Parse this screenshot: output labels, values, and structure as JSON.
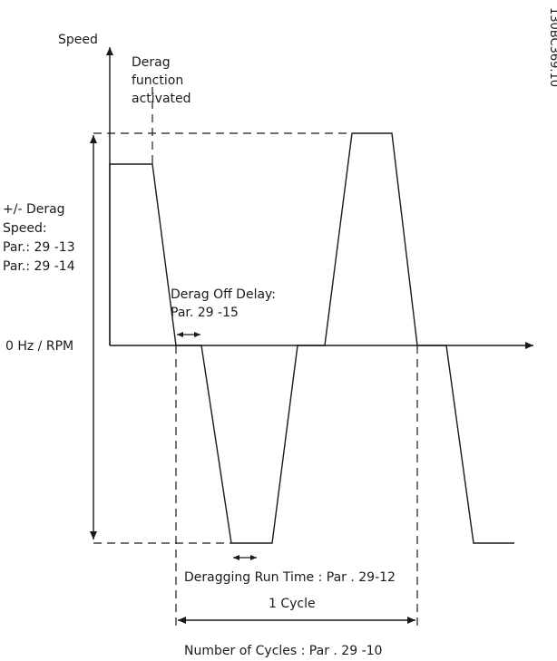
{
  "labels": {
    "speed": "Speed",
    "derag_line1": "Derag",
    "derag_line2": "function",
    "derag_line3": "activated",
    "range_line1": "+/- Derag",
    "range_line2": "Speed:",
    "range_line3": "Par.: 29 -13",
    "range_line4": "Par.: 29 -14",
    "zero": "0 Hz / RPM",
    "offdelay_line1": "Derag Off Delay:",
    "offdelay_line2": "Par. 29 -15",
    "runtime": "Deragging Run Time : Par . 29-12",
    "cycle": "1 Cycle",
    "num_cycles": "Number of Cycles : Par . 29 -10",
    "figure_code": "130BC369.10"
  }
}
